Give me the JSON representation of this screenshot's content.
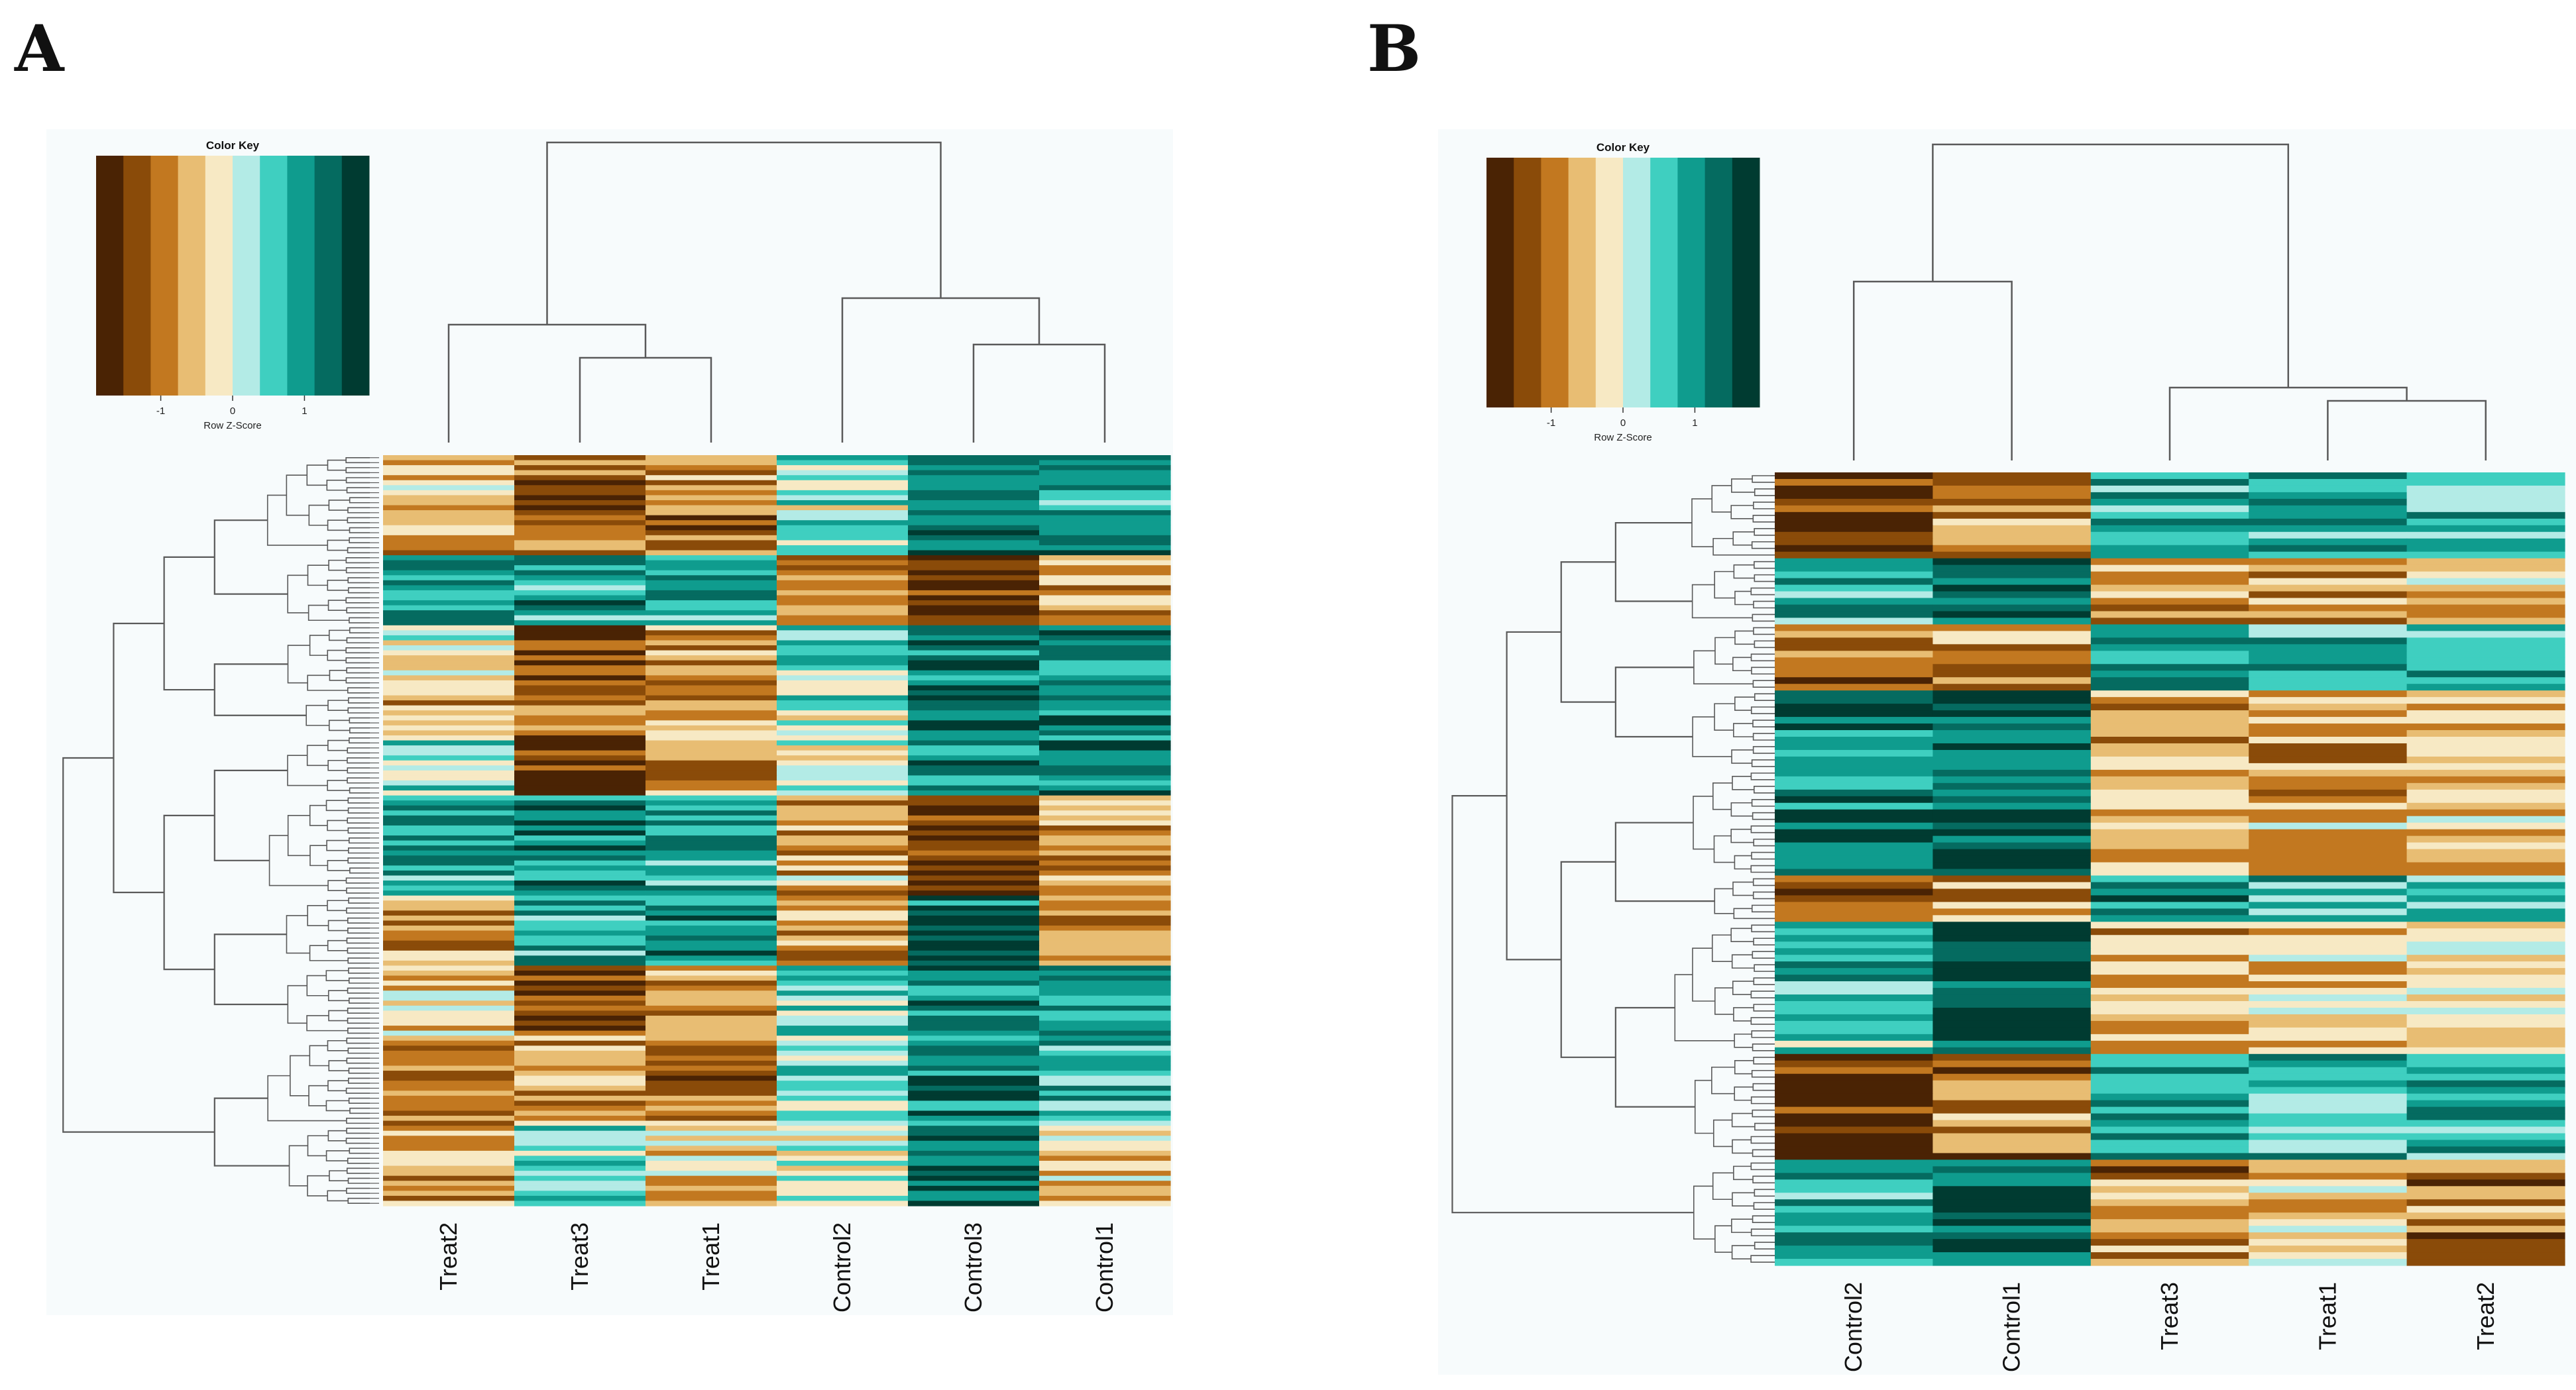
{
  "figure": {
    "panel_a_letter": "A",
    "panel_b_letter": "B"
  },
  "colors": {
    "scale": [
      "#4a2304",
      "#8a4b09",
      "#c27820",
      "#e8bd73",
      "#f7e9c4",
      "#b3ebe6",
      "#3fcfc0",
      "#0f9c8e",
      "#056b60",
      "#003b31"
    ],
    "background": "#f7fbfc",
    "tree": "#5a5a5a"
  },
  "chart_data": [
    {
      "type": "heatmap",
      "panel": "A",
      "columns": [
        "Treat2",
        "Treat3",
        "Treat1",
        "Control2",
        "Control3",
        "Control1"
      ],
      "n_rows": 150,
      "color_key": {
        "title": "Color Key",
        "ticks": [
          "-1",
          "0",
          "1"
        ],
        "tick_values": [
          -1,
          0,
          1
        ],
        "range": [
          -1.9,
          1.9
        ],
        "label": "Row Z-Score"
      },
      "column_dendrogram": "((Treat2,(Treat3,Treat1)),(Control2,(Control3,Control1)))",
      "row_blocks": [
        {
          "rows": 20,
          "values": [
            -0.6,
            -1.1,
            -0.9,
            0.2,
            1.2,
            1.0
          ]
        },
        {
          "rows": 14,
          "values": [
            1.0,
            0.9,
            0.8,
            -0.8,
            -1.4,
            -0.7
          ]
        },
        {
          "rows": 14,
          "values": [
            -0.2,
            -1.5,
            -0.9,
            0.3,
            1.3,
            1.0
          ]
        },
        {
          "rows": 8,
          "values": [
            -0.8,
            -0.9,
            -0.7,
            0.2,
            1.4,
            1.1
          ]
        },
        {
          "rows": 12,
          "values": [
            0.3,
            -1.6,
            -0.8,
            0.0,
            1.1,
            1.3
          ]
        },
        {
          "rows": 20,
          "values": [
            0.9,
            1.1,
            0.9,
            -0.6,
            -1.5,
            -0.6
          ]
        },
        {
          "rows": 14,
          "values": [
            -0.8,
            1.0,
            1.1,
            -0.9,
            1.2,
            -1.0
          ]
        },
        {
          "rows": 14,
          "values": [
            -0.5,
            -1.3,
            -1.0,
            0.5,
            1.1,
            0.9
          ]
        },
        {
          "rows": 18,
          "values": [
            -0.9,
            -0.7,
            -0.9,
            0.4,
            1.3,
            0.8
          ]
        },
        {
          "rows": 16,
          "values": [
            -0.6,
            0.3,
            -0.5,
            0.2,
            1.4,
            -0.4
          ]
        }
      ]
    },
    {
      "type": "heatmap",
      "panel": "B",
      "columns": [
        "Control2",
        "Control1",
        "Treat3",
        "Treat1",
        "Treat2"
      ],
      "n_rows": 120,
      "color_key": {
        "title": "Color Key",
        "ticks": [
          "-1",
          "0",
          "1"
        ],
        "tick_values": [
          -1,
          0,
          1
        ],
        "range": [
          -1.9,
          1.9
        ],
        "label": "Row Z-Score"
      },
      "column_dendrogram": "((Control2,Control1),(Treat3,(Treat1,Treat2)))",
      "row_blocks": [
        {
          "rows": 13,
          "values": [
            -1.4,
            -0.9,
            0.9,
            0.8,
            0.6
          ]
        },
        {
          "rows": 10,
          "values": [
            0.8,
            1.6,
            -0.9,
            -0.8,
            -0.5
          ]
        },
        {
          "rows": 10,
          "values": [
            -1.2,
            -0.6,
            0.9,
            1.0,
            0.7
          ]
        },
        {
          "rows": 12,
          "values": [
            1.2,
            1.4,
            -0.8,
            -0.6,
            -0.5
          ]
        },
        {
          "rows": 16,
          "values": [
            1.1,
            1.5,
            -0.7,
            -0.6,
            -0.6
          ]
        },
        {
          "rows": 7,
          "values": [
            -1.3,
            -0.8,
            0.9,
            0.8,
            0.7
          ]
        },
        {
          "rows": 20,
          "values": [
            0.6,
            1.7,
            -0.6,
            -0.5,
            -0.3
          ]
        },
        {
          "rows": 16,
          "values": [
            -1.5,
            -1.0,
            0.9,
            0.7,
            0.9
          ]
        },
        {
          "rows": 16,
          "values": [
            0.9,
            1.4,
            -0.9,
            -0.4,
            -1.0
          ]
        }
      ]
    }
  ]
}
